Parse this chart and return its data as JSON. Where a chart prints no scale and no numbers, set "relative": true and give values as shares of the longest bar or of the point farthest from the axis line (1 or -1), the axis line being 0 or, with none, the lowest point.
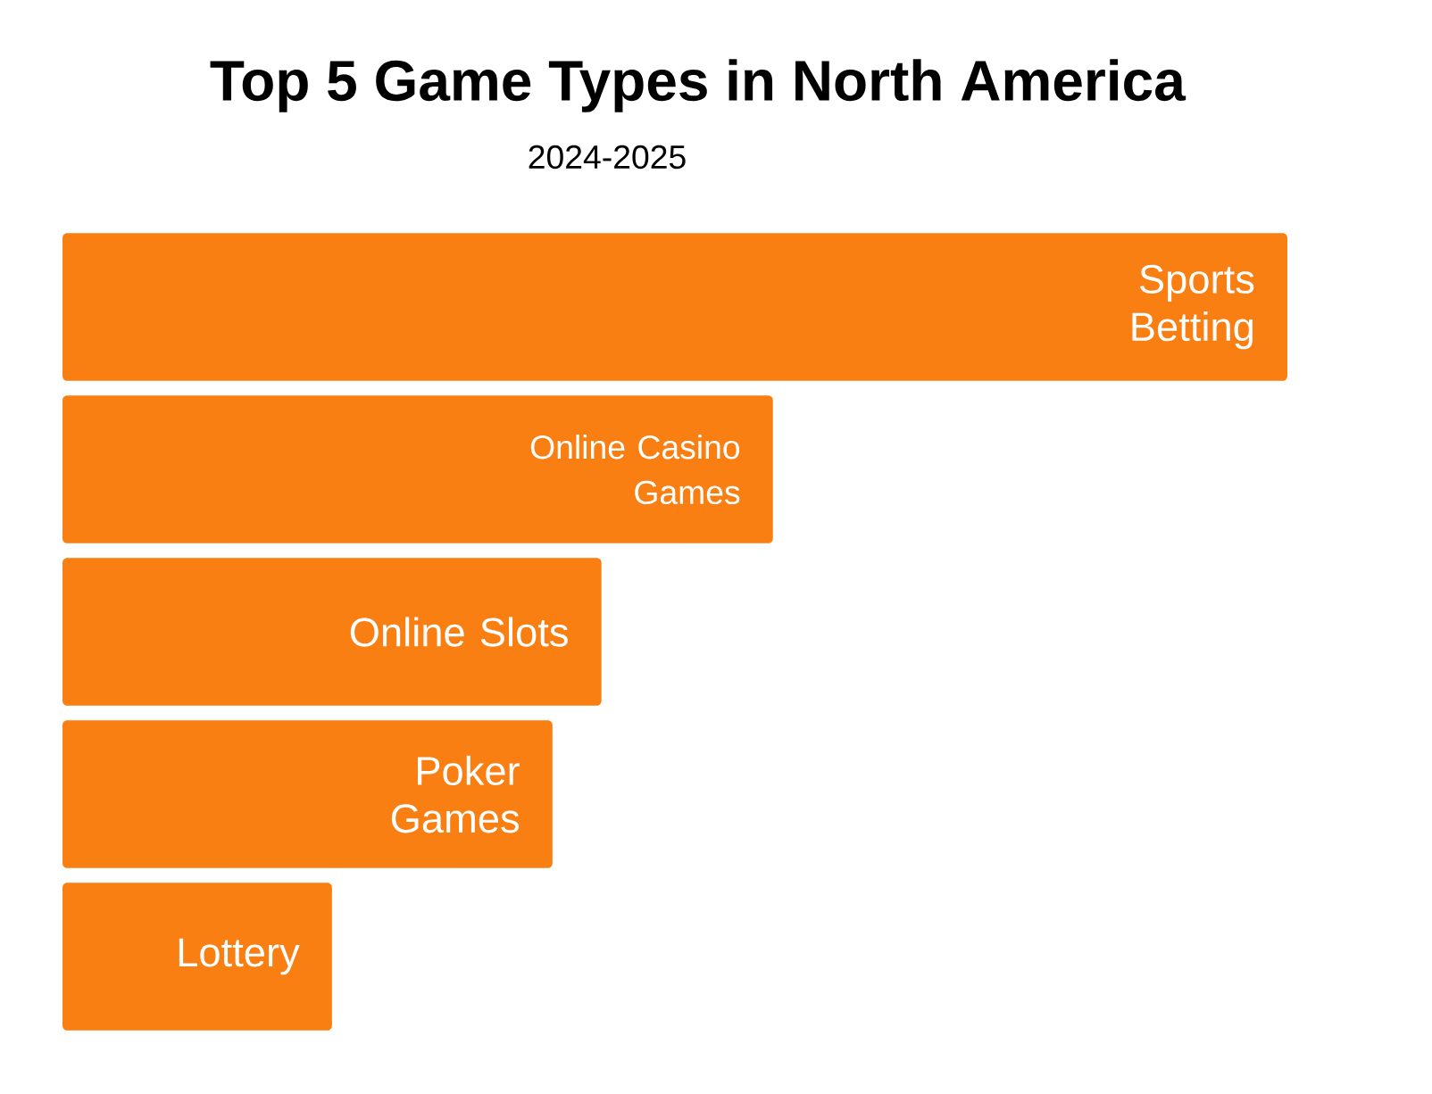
{
  "chart_data": {
    "type": "bar",
    "orientation": "horizontal",
    "relative": true,
    "title": "Top 5 Game Types in North America",
    "subtitle": "2024-2025",
    "categories": [
      "Sports Betting",
      "Online Casino Games",
      "Online Slots",
      "Poker Games",
      "Lottery"
    ],
    "values": [
      1,
      0.58,
      0.44,
      0.4,
      0.22
    ],
    "color": "#fa7f12"
  }
}
